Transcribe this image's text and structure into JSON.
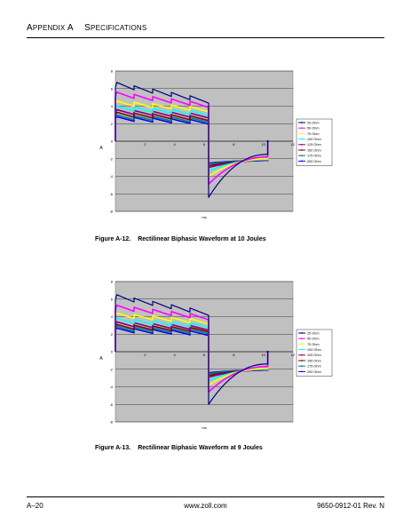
{
  "header": {
    "appendix": "Appendix A",
    "section": "Specifications"
  },
  "figures": [
    {
      "label": "Figure A-12.",
      "title": "Rectilinear Biphasic Waveform at 10 Joules",
      "chart_data": {
        "type": "line",
        "xlabel": "ms",
        "ylabel": "A",
        "xlim": [
          0,
          12
        ],
        "ylim": [
          -8,
          8
        ],
        "xticks": [
          2,
          4,
          6,
          8,
          10,
          12
        ],
        "yticks": [
          -8,
          -6,
          -4,
          -2,
          0,
          2,
          4,
          6,
          8
        ],
        "grid": true,
        "legend": "right",
        "series": [
          {
            "name": "25 Ohm",
            "color": "#000080",
            "pos": [
              6.7,
              4.8
            ],
            "neg": [
              -6.4,
              -1.5
            ]
          },
          {
            "name": "50 Ohm",
            "color": "#ff00ff",
            "pos": [
              5.6,
              4.3
            ],
            "neg": [
              -4.9,
              -1.8
            ]
          },
          {
            "name": "75 Ohm",
            "color": "#ffff00",
            "pos": [
              4.6,
              3.8
            ],
            "neg": [
              -4.0,
              -2.0
            ]
          },
          {
            "name": "100 Ohm",
            "color": "#00ffff",
            "pos": [
              4.0,
              3.4
            ],
            "neg": [
              -3.4,
              -2.1
            ]
          },
          {
            "name": "125 Ohm",
            "color": "#800080",
            "pos": [
              3.6,
              3.1
            ],
            "neg": [
              -3.0,
              -2.2
            ]
          },
          {
            "name": "150 Ohm",
            "color": "#800000",
            "pos": [
              3.3,
              2.8
            ],
            "neg": [
              -2.8,
              -2.2
            ]
          },
          {
            "name": "175 Ohm",
            "color": "#008080",
            "pos": [
              3.0,
              2.6
            ],
            "neg": [
              -2.6,
              -2.2
            ]
          },
          {
            "name": "200 Ohm",
            "color": "#0000ff",
            "pos": [
              2.8,
              2.4
            ],
            "neg": [
              -2.5,
              -2.2
            ]
          }
        ]
      }
    },
    {
      "label": "Figure A-13.",
      "title": "Rectilinear Biphasic Waveform at 9 Joules",
      "chart_data": {
        "type": "line",
        "xlabel": "ms",
        "ylabel": "A",
        "xlim": [
          0,
          12
        ],
        "ylim": [
          -8,
          8
        ],
        "xticks": [
          2,
          4,
          6,
          8,
          10,
          12
        ],
        "yticks": [
          -8,
          -6,
          -4,
          -2,
          0,
          2,
          4,
          6,
          8
        ],
        "grid": true,
        "legend": "right",
        "series": [
          {
            "name": "25 Ohm",
            "color": "#000080",
            "pos": [
              6.5,
              4.6
            ],
            "neg": [
              -6.0,
              -1.4
            ]
          },
          {
            "name": "50 Ohm",
            "color": "#ff00ff",
            "pos": [
              5.3,
              4.1
            ],
            "neg": [
              -4.6,
              -1.7
            ]
          },
          {
            "name": "75 Ohm",
            "color": "#ffff00",
            "pos": [
              4.4,
              3.6
            ],
            "neg": [
              -3.8,
              -1.9
            ]
          },
          {
            "name": "100 Ohm",
            "color": "#00ffff",
            "pos": [
              3.8,
              3.2
            ],
            "neg": [
              -3.3,
              -2.0
            ]
          },
          {
            "name": "125 Ohm",
            "color": "#800080",
            "pos": [
              3.4,
              2.9
            ],
            "neg": [
              -2.9,
              -2.1
            ]
          },
          {
            "name": "150 Ohm",
            "color": "#800000",
            "pos": [
              3.1,
              2.7
            ],
            "neg": [
              -2.7,
              -2.1
            ]
          },
          {
            "name": "175 Ohm",
            "color": "#008080",
            "pos": [
              2.9,
              2.5
            ],
            "neg": [
              -2.5,
              -2.1
            ]
          },
          {
            "name": "200 Ohm",
            "color": "#0000ff",
            "pos": [
              2.7,
              2.3
            ],
            "neg": [
              -2.4,
              -2.1
            ]
          }
        ]
      }
    }
  ],
  "footer": {
    "page": "A–20",
    "url": "www.zoll.com",
    "doc": "9650-0912-01 Rev. N"
  }
}
